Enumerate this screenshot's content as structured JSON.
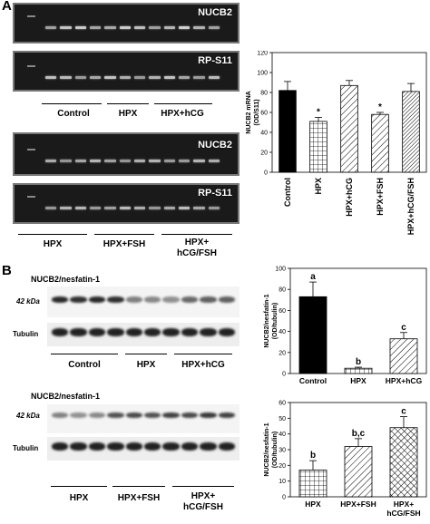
{
  "panels": {
    "a": {
      "letter": "A",
      "gel_top_labels": [
        "NUCB2",
        "RP-S11"
      ],
      "gel_top_groups": [
        "Control",
        "HPX",
        "HPX+hCG"
      ],
      "gel_bottom_labels": [
        "NUCB2",
        "RP-S11"
      ],
      "gel_bottom_groups": [
        "HPX",
        "HPX+FSH",
        "HPX+",
        "hCG/FSH"
      ]
    },
    "b": {
      "letter": "B",
      "blot_top_title": "NUCB2/nesfatin-1",
      "blot_top_kda": "42 kDa",
      "blot_top_tubulin": "Tubulin",
      "blot_top_groups": [
        "Control",
        "HPX",
        "HPX+hCG"
      ],
      "blot_bottom_title": "NUCB2/nesfatin-1",
      "blot_bottom_kda": "42 kDa",
      "blot_bottom_tubulin": "Tubulin",
      "blot_bottom_groups": [
        "HPX",
        "HPX+FSH",
        "HPX+",
        "hCG/FSH"
      ]
    }
  },
  "chart_data": [
    {
      "type": "bar",
      "categories": [
        "Control",
        "HPX",
        "HPX+hCG",
        "HPX+FSH",
        "HPX+hCG/FSH"
      ],
      "values": [
        82,
        51,
        87,
        58,
        81
      ],
      "errors": [
        9,
        4,
        5,
        2,
        8
      ],
      "annotations": [
        "",
        "*",
        "",
        "*",
        ""
      ],
      "ylabel": "NUCB2 mRNA (OD/S11)",
      "ylim": [
        0,
        120
      ],
      "yticks": [
        "0",
        "20",
        "40",
        "60",
        "80",
        "100",
        "120"
      ],
      "fills": [
        "solid",
        "grid",
        "hatch",
        "hatch",
        "hatch-dense"
      ]
    },
    {
      "type": "bar",
      "categories": [
        "Control",
        "HPX",
        "HPX+hCG"
      ],
      "values": [
        73,
        5,
        33
      ],
      "errors": [
        14,
        1,
        6
      ],
      "annotations": [
        "a",
        "b",
        "c"
      ],
      "ylabel": "NUCB2/nesfatin-1 (OD/tubulin)",
      "ylim": [
        0,
        100
      ],
      "yticks": [
        "0",
        "20",
        "40",
        "60",
        "80",
        "100"
      ],
      "fills": [
        "solid",
        "grid",
        "hatch"
      ]
    },
    {
      "type": "bar",
      "categories": [
        "HPX",
        "HPX+FSH",
        "HPX+ hCG/FSH"
      ],
      "category_lines": [
        [
          "HPX"
        ],
        [
          "HPX+FSH"
        ],
        [
          "HPX+",
          "hCG/FSH"
        ]
      ],
      "values": [
        17,
        32,
        44
      ],
      "errors": [
        6,
        5,
        7
      ],
      "annotations": [
        "b",
        "b,c",
        "c"
      ],
      "ylabel": "NUCB2/nesfatin-1 (OD/tubulin)",
      "ylim": [
        0,
        60
      ],
      "yticks": [
        "0",
        "10",
        "20",
        "30",
        "40",
        "50",
        "60"
      ],
      "fills": [
        "grid",
        "hatch",
        "cross"
      ]
    }
  ]
}
